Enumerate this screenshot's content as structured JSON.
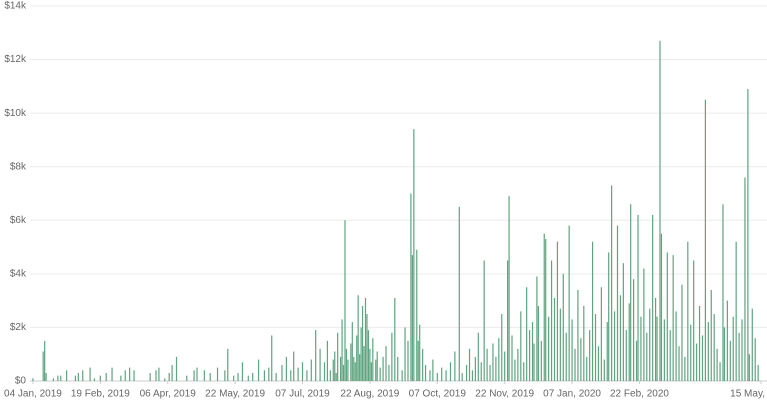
{
  "chart_data": {
    "type": "bar",
    "x": [
      0,
      7,
      8,
      9,
      14,
      17,
      19,
      23,
      29,
      31,
      34,
      39,
      42,
      46,
      50,
      54,
      60,
      63,
      66,
      69,
      80,
      84,
      86,
      90,
      93,
      95,
      98,
      105,
      110,
      112,
      117,
      121,
      126,
      131,
      133,
      137,
      140,
      143,
      147,
      150,
      154,
      158,
      161,
      163,
      166,
      170,
      173,
      176,
      178,
      181,
      184,
      187,
      190,
      193,
      196,
      199,
      201,
      203,
      205,
      206,
      207,
      208,
      210,
      211,
      212,
      213,
      214,
      215,
      217,
      218,
      219,
      220,
      221,
      222,
      223,
      224,
      225,
      226,
      227,
      228,
      229,
      230,
      231,
      232,
      234,
      235,
      237,
      239,
      241,
      243,
      245,
      247,
      249,
      252,
      254,
      256,
      258,
      259,
      260,
      262,
      263,
      264,
      266,
      268,
      271,
      273,
      276,
      279,
      282,
      285,
      288,
      291,
      293,
      296,
      298,
      300,
      302,
      304,
      306,
      308,
      310,
      312,
      314,
      316,
      318,
      320,
      322,
      324,
      325,
      327,
      329,
      331,
      333,
      335,
      337,
      339,
      341,
      342,
      344,
      345,
      347,
      349,
      350,
      352,
      354,
      356,
      358,
      360,
      362,
      364,
      366,
      368,
      370,
      372,
      374,
      376,
      378,
      380,
      382,
      384,
      386,
      388,
      390,
      392,
      393,
      395,
      397,
      399,
      401,
      403,
      405,
      407,
      408,
      410,
      412,
      413,
      415,
      417,
      419,
      421,
      423,
      425,
      426,
      428,
      429,
      431,
      433,
      435,
      437,
      439,
      441,
      443,
      445,
      447,
      449,
      451,
      453,
      455,
      457,
      459,
      461,
      463,
      465,
      467,
      469,
      471,
      472,
      474,
      476,
      478,
      480,
      482,
      484,
      486,
      488,
      489,
      491,
      493,
      495
    ],
    "values": [
      100,
      1100,
      1500,
      300,
      100,
      200,
      200,
      400,
      200,
      300,
      400,
      500,
      100,
      200,
      300,
      500,
      200,
      400,
      500,
      400,
      300,
      400,
      500,
      100,
      300,
      600,
      900,
      200,
      400,
      500,
      400,
      300,
      500,
      400,
      1200,
      200,
      300,
      700,
      200,
      300,
      800,
      400,
      500,
      1700,
      300,
      600,
      900,
      400,
      1100,
      500,
      700,
      400,
      800,
      1900,
      1200,
      700,
      1500,
      400,
      800,
      1100,
      300,
      1800,
      900,
      2300,
      600,
      6000,
      1200,
      800,
      1400,
      2200,
      900,
      700,
      1700,
      3200,
      1000,
      2000,
      2800,
      1300,
      3100,
      2500,
      1900,
      1200,
      700,
      1600,
      800,
      1100,
      500,
      900,
      1300,
      600,
      1800,
      3100,
      900,
      400,
      2000,
      1500,
      7000,
      4700,
      9400,
      4900,
      1500,
      2100,
      1200,
      600,
      400,
      800,
      300,
      500,
      400,
      700,
      1100,
      6500,
      300,
      600,
      1200,
      400,
      900,
      1800,
      700,
      4500,
      1200,
      600,
      1400,
      900,
      1600,
      2500,
      1100,
      4500,
      6900,
      1700,
      800,
      1200,
      2600,
      700,
      3500,
      1900,
      2200,
      1400,
      3900,
      2800,
      1500,
      5500,
      5300,
      2400,
      4500,
      3100,
      5200,
      2700,
      4000,
      1800,
      5800,
      2300,
      1200,
      3400,
      1600,
      2800,
      900,
      1900,
      5200,
      2500,
      1300,
      3500,
      800,
      2200,
      4800,
      7300,
      2600,
      5800,
      3200,
      4400,
      1900,
      2900,
      6600,
      3800,
      1500,
      6200,
      2400,
      4200,
      1800,
      2700,
      6200,
      3100,
      2400,
      12700,
      5500,
      2300,
      4800,
      1900,
      4700,
      2600,
      1300,
      3600,
      900,
      5200,
      2100,
      4500,
      1400,
      2800,
      1700,
      10500,
      2200,
      3400,
      2500,
      1200,
      700,
      6600,
      2000,
      3000,
      1500,
      2400,
      5200,
      1800,
      2300,
      7600,
      10900,
      1000,
      2700,
      1600,
      600
    ],
    "color": "#5fa47f",
    "xlim": [
      -2,
      499
    ],
    "xticks": [
      {
        "value": 0,
        "label": "04 Jan, 2019"
      },
      {
        "value": 46,
        "label": "19 Feb, 2019"
      },
      {
        "value": 92,
        "label": "06 Apr, 2019"
      },
      {
        "value": 138,
        "label": "22 May, 2019"
      },
      {
        "value": 184,
        "label": "07 Jul, 2019"
      },
      {
        "value": 230,
        "label": "22 Aug, 2019"
      },
      {
        "value": 276,
        "label": "07 Oct, 2019"
      },
      {
        "value": 322,
        "label": "22 Nov, 2019"
      },
      {
        "value": 368,
        "label": "07 Jan, 2020"
      },
      {
        "value": 414,
        "label": "22 Feb, 2020"
      },
      {
        "value": 497,
        "label": "15 May,"
      }
    ],
    "ylim": [
      0,
      14000
    ],
    "yticks": [
      {
        "value": 0,
        "label": "$0"
      },
      {
        "value": 2000,
        "label": "$2k"
      },
      {
        "value": 4000,
        "label": "$4k"
      },
      {
        "value": 6000,
        "label": "$6k"
      },
      {
        "value": 8000,
        "label": "$8k"
      },
      {
        "value": 10000,
        "label": "$10k"
      },
      {
        "value": 12000,
        "label": "$12k"
      },
      {
        "value": 14000,
        "label": "$14k"
      }
    ],
    "grid": true
  }
}
